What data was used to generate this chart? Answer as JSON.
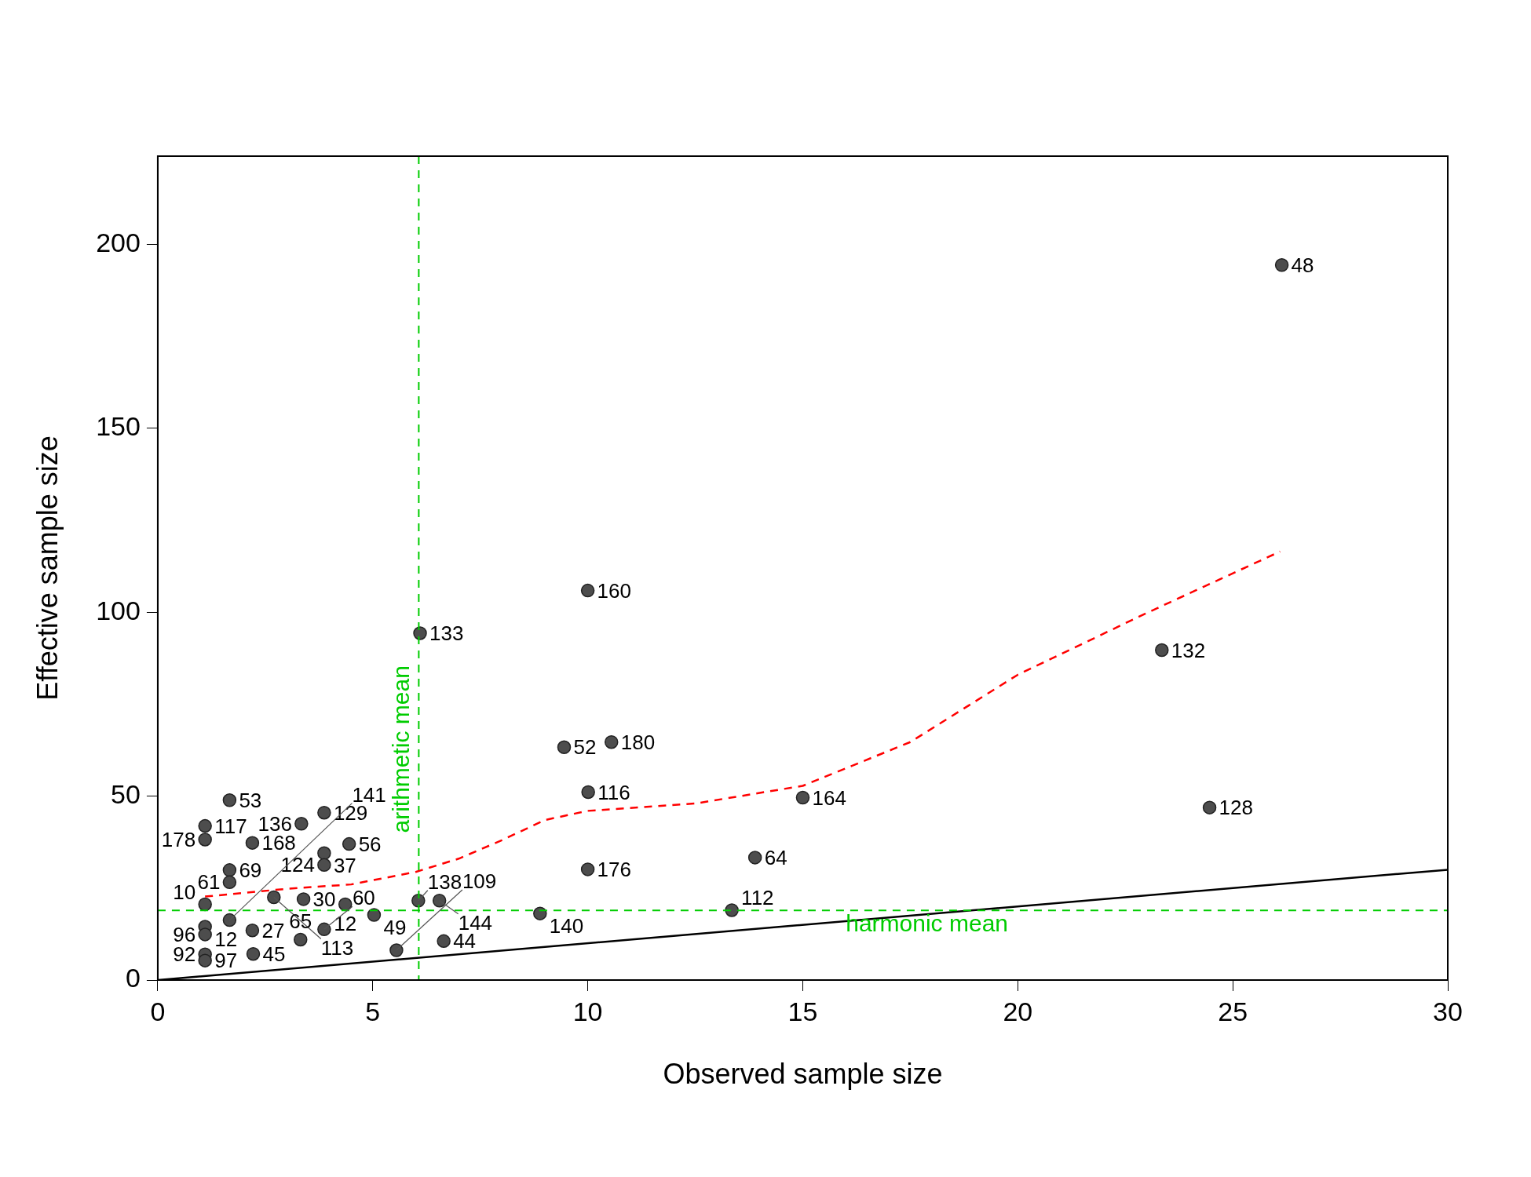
{
  "chart_data": {
    "type": "scatter",
    "xlabel": "Observed sample size",
    "ylabel": "Effective sample size",
    "xlim": [
      0,
      30
    ],
    "xticks": [
      0,
      5,
      10,
      15,
      20,
      25,
      30
    ],
    "ylim": [
      0,
      224
    ],
    "yticks": [
      0,
      50,
      100,
      150,
      200
    ],
    "grid": false,
    "legend": false,
    "marker": "circle",
    "series": [
      {
        "type": "scatter",
        "color": "#4d4d4d",
        "x": [
          1.67,
          1.1,
          1.1,
          2.2,
          3.34,
          3.87,
          4.45,
          3.87,
          3.87,
          1.67,
          1.67,
          1.1,
          2.7,
          3.39,
          4.36,
          5.03,
          6.06,
          6.55,
          1.67,
          1.1,
          1.1,
          2.2,
          3.87,
          3.32,
          2.22,
          1.1,
          1.1,
          5.55,
          6.65,
          6.1,
          9.45,
          10.55,
          10.01,
          10.0,
          8.89,
          13.35,
          10.0,
          13.89,
          15.0,
          23.35,
          24.46,
          26.14
        ],
        "values": [
          48.9,
          41.9,
          38.2,
          37.3,
          42.5,
          45.5,
          37.0,
          34.5,
          31.3,
          29.9,
          26.6,
          20.6,
          22.5,
          22.0,
          20.6,
          17.7,
          21.6,
          21.6,
          16.3,
          14.5,
          12.4,
          13.5,
          13.8,
          11.0,
          7.1,
          7.0,
          5.3,
          8.1,
          10.6,
          94.3,
          63.3,
          64.7,
          51.1,
          30.1,
          18.1,
          19.0,
          105.9,
          33.3,
          49.6,
          89.7,
          46.9,
          194.4
        ]
      },
      {
        "type": "line",
        "color": "#000000",
        "line_style": "solid",
        "marker": "none",
        "x": [
          0,
          30
        ],
        "values": [
          0,
          30
        ]
      },
      {
        "type": "line",
        "color": "#ff0000",
        "line_style": "dashed",
        "marker": "none",
        "x": [
          1.1,
          3,
          4.5,
          6,
          7,
          8,
          9,
          10,
          12.5,
          15,
          17.5,
          20,
          23,
          26.1
        ],
        "values": [
          22.7,
          24.8,
          26,
          29.4,
          33,
          38,
          43.5,
          46,
          48,
          52.8,
          64.7,
          83,
          99.8,
          116.5
        ]
      }
    ],
    "annotations": [
      {
        "text": "53",
        "x": 1.67,
        "y": 48.9
      },
      {
        "text": "117",
        "x": 1.1,
        "y": 41.9
      },
      {
        "text": "178",
        "x": 1.1,
        "y": 38.2
      },
      {
        "text": "168",
        "x": 2.2,
        "y": 37.3
      },
      {
        "text": "136",
        "x": 3.34,
        "y": 42.5
      },
      {
        "text": "129",
        "x": 3.87,
        "y": 45.5
      },
      {
        "text": "56",
        "x": 4.45,
        "y": 37.0
      },
      {
        "text": "37",
        "x": 3.87,
        "y": 34.5
      },
      {
        "text": "124",
        "x": 3.87,
        "y": 31.3
      },
      {
        "text": "69",
        "x": 1.67,
        "y": 29.9
      },
      {
        "text": "61",
        "x": 1.67,
        "y": 26.6
      },
      {
        "text": "10",
        "x": 1.1,
        "y": 20.6
      },
      {
        "text": "113",
        "x": 2.7,
        "y": 22.5
      },
      {
        "text": "30",
        "x": 3.39,
        "y": 22.0
      },
      {
        "text": "12",
        "x": 4.36,
        "y": 20.6
      },
      {
        "text": "49",
        "x": 5.03,
        "y": 17.7
      },
      {
        "text": "138",
        "x": 6.06,
        "y": 21.6
      },
      {
        "text": "144",
        "x": 6.55,
        "y": 21.6
      },
      {
        "text": "141",
        "x": 1.67,
        "y": 16.3
      },
      {
        "text": "12",
        "x": 1.1,
        "y": 14.5
      },
      {
        "text": "96",
        "x": 1.1,
        "y": 12.4
      },
      {
        "text": "27",
        "x": 2.2,
        "y": 13.5
      },
      {
        "text": "60",
        "x": 3.87,
        "y": 13.8
      },
      {
        "text": "65",
        "x": 3.32,
        "y": 11.0
      },
      {
        "text": "45",
        "x": 2.22,
        "y": 7.1
      },
      {
        "text": "92",
        "x": 1.1,
        "y": 7.0
      },
      {
        "text": "97",
        "x": 1.1,
        "y": 5.3
      },
      {
        "text": "109",
        "x": 5.55,
        "y": 8.1
      },
      {
        "text": "44",
        "x": 6.65,
        "y": 10.6
      },
      {
        "text": "133",
        "x": 6.1,
        "y": 94.3
      },
      {
        "text": "52",
        "x": 9.45,
        "y": 63.3
      },
      {
        "text": "180",
        "x": 10.55,
        "y": 64.7
      },
      {
        "text": "116",
        "x": 10.01,
        "y": 51.1
      },
      {
        "text": "176",
        "x": 10.0,
        "y": 30.1
      },
      {
        "text": "140",
        "x": 8.89,
        "y": 18.1
      },
      {
        "text": "112",
        "x": 13.35,
        "y": 19.0
      },
      {
        "text": "160",
        "x": 10.0,
        "y": 105.9
      },
      {
        "text": "64",
        "x": 13.89,
        "y": 33.3
      },
      {
        "text": "164",
        "x": 15.0,
        "y": 49.6
      },
      {
        "text": "132",
        "x": 23.35,
        "y": 89.7
      },
      {
        "text": "128",
        "x": 24.46,
        "y": 46.9
      },
      {
        "text": "48",
        "x": 26.14,
        "y": 194.4
      }
    ],
    "ref_lines": [
      {
        "axis": "y",
        "value": 18.95,
        "label": "harmonic mean",
        "color": "#00cc00",
        "line_style": "dashed"
      },
      {
        "axis": "x",
        "value": 6.07,
        "label": "arithmetic mean",
        "color": "#00cc00",
        "line_style": "dashed"
      }
    ]
  }
}
